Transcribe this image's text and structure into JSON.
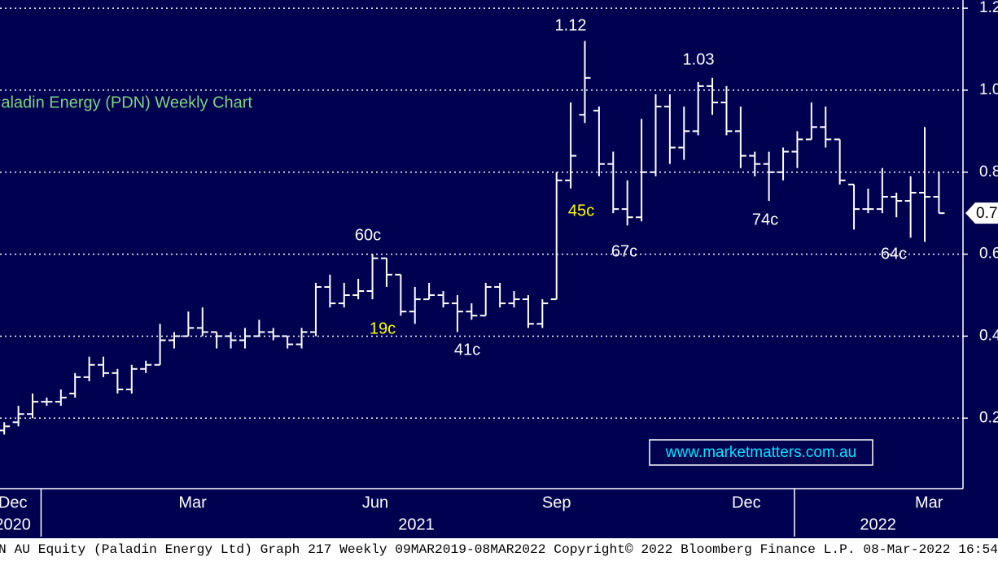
{
  "chart_data": {
    "type": "ohlc",
    "title": "Paladin Energy (PDN) Weekly Chart",
    "x": [
      0,
      1,
      2,
      3,
      4,
      5,
      6,
      7,
      8,
      9,
      10,
      11,
      12,
      13,
      14,
      15,
      16,
      17,
      18,
      19,
      20,
      21,
      22,
      23,
      24,
      25,
      26,
      27,
      28,
      29,
      30,
      31,
      32,
      33,
      34,
      35,
      36,
      37,
      38,
      39,
      40,
      41,
      42,
      43,
      44,
      45,
      46,
      47,
      48,
      49,
      50,
      51,
      52,
      53,
      54,
      55,
      56,
      57,
      58,
      59,
      60,
      61,
      62,
      63,
      64,
      65,
      66
    ],
    "series": [
      {
        "color": "#ffffff",
        "open": [
          0.17,
          0.19,
          0.21,
          0.24,
          0.24,
          0.26,
          0.3,
          0.33,
          0.31,
          0.27,
          0.32,
          0.33,
          0.39,
          0.4,
          0.42,
          0.41,
          0.4,
          0.39,
          0.4,
          0.41,
          0.4,
          0.38,
          0.41,
          0.52,
          0.48,
          0.5,
          0.51,
          0.59,
          0.55,
          0.46,
          0.49,
          0.5,
          0.48,
          0.46,
          0.45,
          0.52,
          0.48,
          0.49,
          0.43,
          0.49,
          0.78,
          0.94,
          0.95,
          0.82,
          0.71,
          0.69,
          0.8,
          0.96,
          0.86,
          0.9,
          1.01,
          0.97,
          0.9,
          0.84,
          0.82,
          0.8,
          0.85,
          0.88,
          0.91,
          0.88,
          0.77,
          0.71,
          0.71,
          0.74,
          0.73,
          0.75,
          0.74
        ],
        "high": [
          0.19,
          0.23,
          0.26,
          0.25,
          0.27,
          0.31,
          0.35,
          0.35,
          0.32,
          0.33,
          0.34,
          0.43,
          0.41,
          0.46,
          0.47,
          0.41,
          0.41,
          0.42,
          0.44,
          0.42,
          0.4,
          0.42,
          0.53,
          0.55,
          0.53,
          0.54,
          0.6,
          0.59,
          0.55,
          0.52,
          0.53,
          0.51,
          0.5,
          0.48,
          0.53,
          0.53,
          0.51,
          0.5,
          0.49,
          0.8,
          0.97,
          1.12,
          0.96,
          0.85,
          0.78,
          0.93,
          0.99,
          0.99,
          0.96,
          1.02,
          1.03,
          1.01,
          0.96,
          0.85,
          0.85,
          0.86,
          0.9,
          0.97,
          0.96,
          0.88,
          0.77,
          0.76,
          0.81,
          0.75,
          0.79,
          0.91,
          0.8
        ],
        "low": [
          0.16,
          0.18,
          0.2,
          0.23,
          0.23,
          0.25,
          0.29,
          0.3,
          0.26,
          0.26,
          0.31,
          0.33,
          0.37,
          0.4,
          0.4,
          0.37,
          0.37,
          0.37,
          0.4,
          0.39,
          0.37,
          0.37,
          0.4,
          0.47,
          0.47,
          0.49,
          0.49,
          0.52,
          0.45,
          0.43,
          0.49,
          0.47,
          0.41,
          0.44,
          0.45,
          0.47,
          0.47,
          0.42,
          0.42,
          0.49,
          0.76,
          0.92,
          0.79,
          0.7,
          0.67,
          0.68,
          0.79,
          0.82,
          0.83,
          0.89,
          0.94,
          0.89,
          0.81,
          0.79,
          0.73,
          0.78,
          0.81,
          0.88,
          0.86,
          0.77,
          0.66,
          0.7,
          0.7,
          0.69,
          0.64,
          0.63,
          0.7
        ],
        "close": [
          0.18,
          0.21,
          0.24,
          0.24,
          0.25,
          0.3,
          0.33,
          0.31,
          0.27,
          0.32,
          0.33,
          0.39,
          0.4,
          0.42,
          0.41,
          0.4,
          0.39,
          0.4,
          0.41,
          0.4,
          0.38,
          0.41,
          0.52,
          0.48,
          0.5,
          0.51,
          0.59,
          0.55,
          0.46,
          0.49,
          0.5,
          0.48,
          0.46,
          0.45,
          0.52,
          0.48,
          0.49,
          0.43,
          0.48,
          0.78,
          0.84,
          1.03,
          0.82,
          0.71,
          0.69,
          0.8,
          0.96,
          0.86,
          0.9,
          1.01,
          0.97,
          0.9,
          0.84,
          0.82,
          0.8,
          0.85,
          0.88,
          0.91,
          0.88,
          0.78,
          0.71,
          0.71,
          0.74,
          0.73,
          0.75,
          0.74,
          0.7
        ]
      }
    ],
    "xlim": [
      -0.3,
      67.7
    ],
    "xticks": [
      {
        "value": 0.6,
        "label": "Dec"
      },
      {
        "value": 13.3,
        "label": "Mar"
      },
      {
        "value": 26.2,
        "label": "Jun"
      },
      {
        "value": 39,
        "label": "Sep"
      },
      {
        "value": 52.4,
        "label": "Dec"
      },
      {
        "value": 65.3,
        "label": "Mar"
      }
    ],
    "year_ticks": [
      {
        "value": 0.6,
        "label": "2020"
      },
      {
        "value": 29.1,
        "label": "2021"
      },
      {
        "value": 61.7,
        "label": "2022"
      }
    ],
    "year_separators": [
      2.6,
      55.8
    ],
    "ylim": [
      0.03,
      1.22
    ],
    "yticks": [
      0.2,
      0.4,
      0.6,
      0.8,
      {
        "value": 1,
        "label": "1.0"
      },
      1.2
    ],
    "grid": true,
    "last_price": 0.7,
    "annotations": [
      {
        "text": "1.12",
        "color": "#ffffff"
      },
      {
        "text": "1.03",
        "color": "#ffffff"
      },
      {
        "text": "60c",
        "color": "#ffffff"
      },
      {
        "text": "45c",
        "color": "#ffff00"
      },
      {
        "text": "67c",
        "color": "#ffffff"
      },
      {
        "text": "74c",
        "color": "#ffffff"
      },
      {
        "text": "19c",
        "color": "#ffff00"
      },
      {
        "text": "41c",
        "color": "#ffffff"
      },
      {
        "text": "64c",
        "color": "#ffffff"
      }
    ],
    "watermark": "www.marketmatters.com.au",
    "footer": "N AU Equity (Paladin Energy Ltd) Graph 217  Weekly 09MAR2019-08MAR2022 Copyright© 2022 Bloomberg Finance L.P. 08-Mar-2022 16:54"
  }
}
